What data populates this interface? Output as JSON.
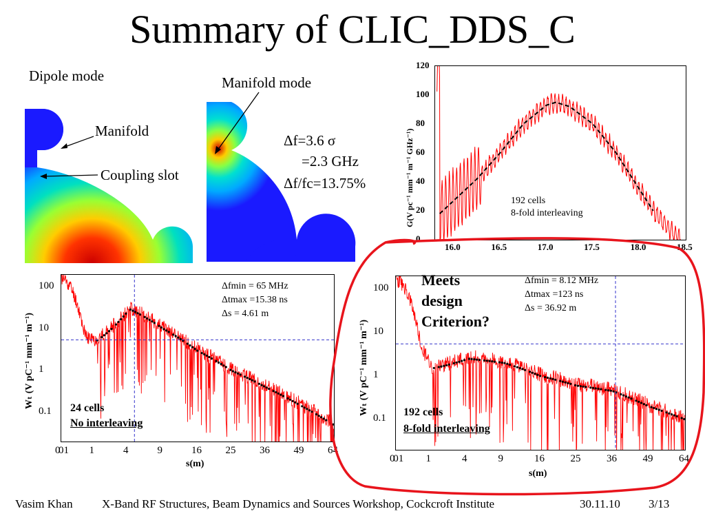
{
  "slide": {
    "title": "Summary of CLIC_DDS_C",
    "footer": {
      "author": "Vasim Khan",
      "event": "X-Band RF Structures, Beam Dynamics and Sources Workshop, Cockcroft Institute",
      "date": "30.11.10",
      "page": "3/13"
    }
  },
  "fields": {
    "dipole_mode": "Dipole mode",
    "manifold_mode": "Manifold mode",
    "manifold": "Manifold",
    "coupling_slot": "Coupling slot",
    "delta_f_line1": "Δf=3.6 σ",
    "delta_f_line2": "=2.3 GHz",
    "delta_f_line3": "Δf/fc=13.75%"
  },
  "colors": {
    "curve": "#ff0000",
    "fit": "#000000",
    "guide": "#3333cc",
    "circle": "#e8141c",
    "field_blue": "#1a1aff"
  },
  "spectrum_chart": {
    "type": "line",
    "ylabel": "G(V pc⁻¹ mm⁻¹ m⁻¹ GHz⁻¹)",
    "x_ticks": [
      "16.0",
      "16.5",
      "17.0",
      "17.5",
      "18.0",
      "18.5"
    ],
    "y_ticks": [
      "0",
      "20",
      "40",
      "60",
      "80",
      "100",
      "120"
    ],
    "xlim": [
      15.8,
      18.5
    ],
    "ylim": [
      0,
      120
    ],
    "legend_line1": "192 cells",
    "legend_line2": "8-fold interleaving"
  },
  "wake_left": {
    "type": "line",
    "xlabel": "s(m)",
    "ylabel": "Wₜ (V pC⁻¹ mm⁻¹ m⁻¹)",
    "x_ticks": [
      "0",
      "01",
      "1",
      "4",
      "9",
      "16",
      "25",
      "36",
      "49",
      "64"
    ],
    "y_ticks": [
      "100",
      "10",
      "1",
      "0.1"
    ],
    "info": [
      "Δfmin = 65 MHz",
      "Δtmax =15.38 ns",
      "Δs = 4.61 m"
    ],
    "note_line1": "24 cells",
    "note_line2": "No interleaving"
  },
  "wake_right": {
    "type": "line",
    "xlabel": "s(m)",
    "ylabel": "Wₜ (V pC⁻¹ mm⁻¹ m⁻¹)",
    "x_ticks": [
      "0",
      "01",
      "1",
      "4",
      "9",
      "16",
      "25",
      "36",
      "49",
      "64"
    ],
    "y_ticks": [
      "100",
      "10",
      "1",
      "0.1"
    ],
    "info": [
      "Δfmin = 8.12 MHz",
      "Δtmax =123 ns",
      "Δs = 36.92 m"
    ],
    "note_line1": "192 cells",
    "note_line2": "8-fold interleaving",
    "criterion": [
      "Meets",
      "design",
      "Criterion?"
    ]
  },
  "chart_data": [
    {
      "type": "line",
      "title": "",
      "xlabel": "",
      "ylabel": "G(V pc⁻¹ mm⁻¹ m⁻¹ GHz⁻¹)",
      "xlim": [
        15.8,
        18.5
      ],
      "ylim": [
        0,
        120
      ],
      "series": [
        {
          "x": [
            15.85,
            16.0,
            16.25,
            16.5,
            16.75,
            17.0,
            17.1,
            17.25,
            17.5,
            17.75,
            18.0,
            18.15
          ],
          "values": [
            18,
            27,
            42,
            60,
            80,
            93,
            95,
            92,
            80,
            60,
            35,
            20
          ]
        }
      ]
    },
    {
      "type": "line",
      "title": "",
      "xlabel": "s(m)",
      "ylabel": "Wₜ (V pC⁻¹ mm⁻¹ m⁻¹)",
      "yscale": "log",
      "x": [
        0,
        0.5,
        1,
        4,
        9,
        16,
        25,
        36,
        49,
        64
      ],
      "series": [
        {
          "values": [
            150,
            6,
            5,
            30,
            10,
            3,
            1,
            0.4,
            0.15,
            0.05
          ]
        }
      ]
    },
    {
      "type": "line",
      "title": "",
      "xlabel": "s(m)",
      "ylabel": "Wₜ (V pC⁻¹ mm⁻¹ m⁻¹)",
      "yscale": "log",
      "x": [
        0,
        0.5,
        1,
        4,
        9,
        16,
        25,
        36,
        49,
        64
      ],
      "series": [
        {
          "values": [
            150,
            4,
            1.5,
            2.5,
            2,
            1,
            0.6,
            0.45,
            0.2,
            0.1
          ]
        }
      ]
    }
  ]
}
